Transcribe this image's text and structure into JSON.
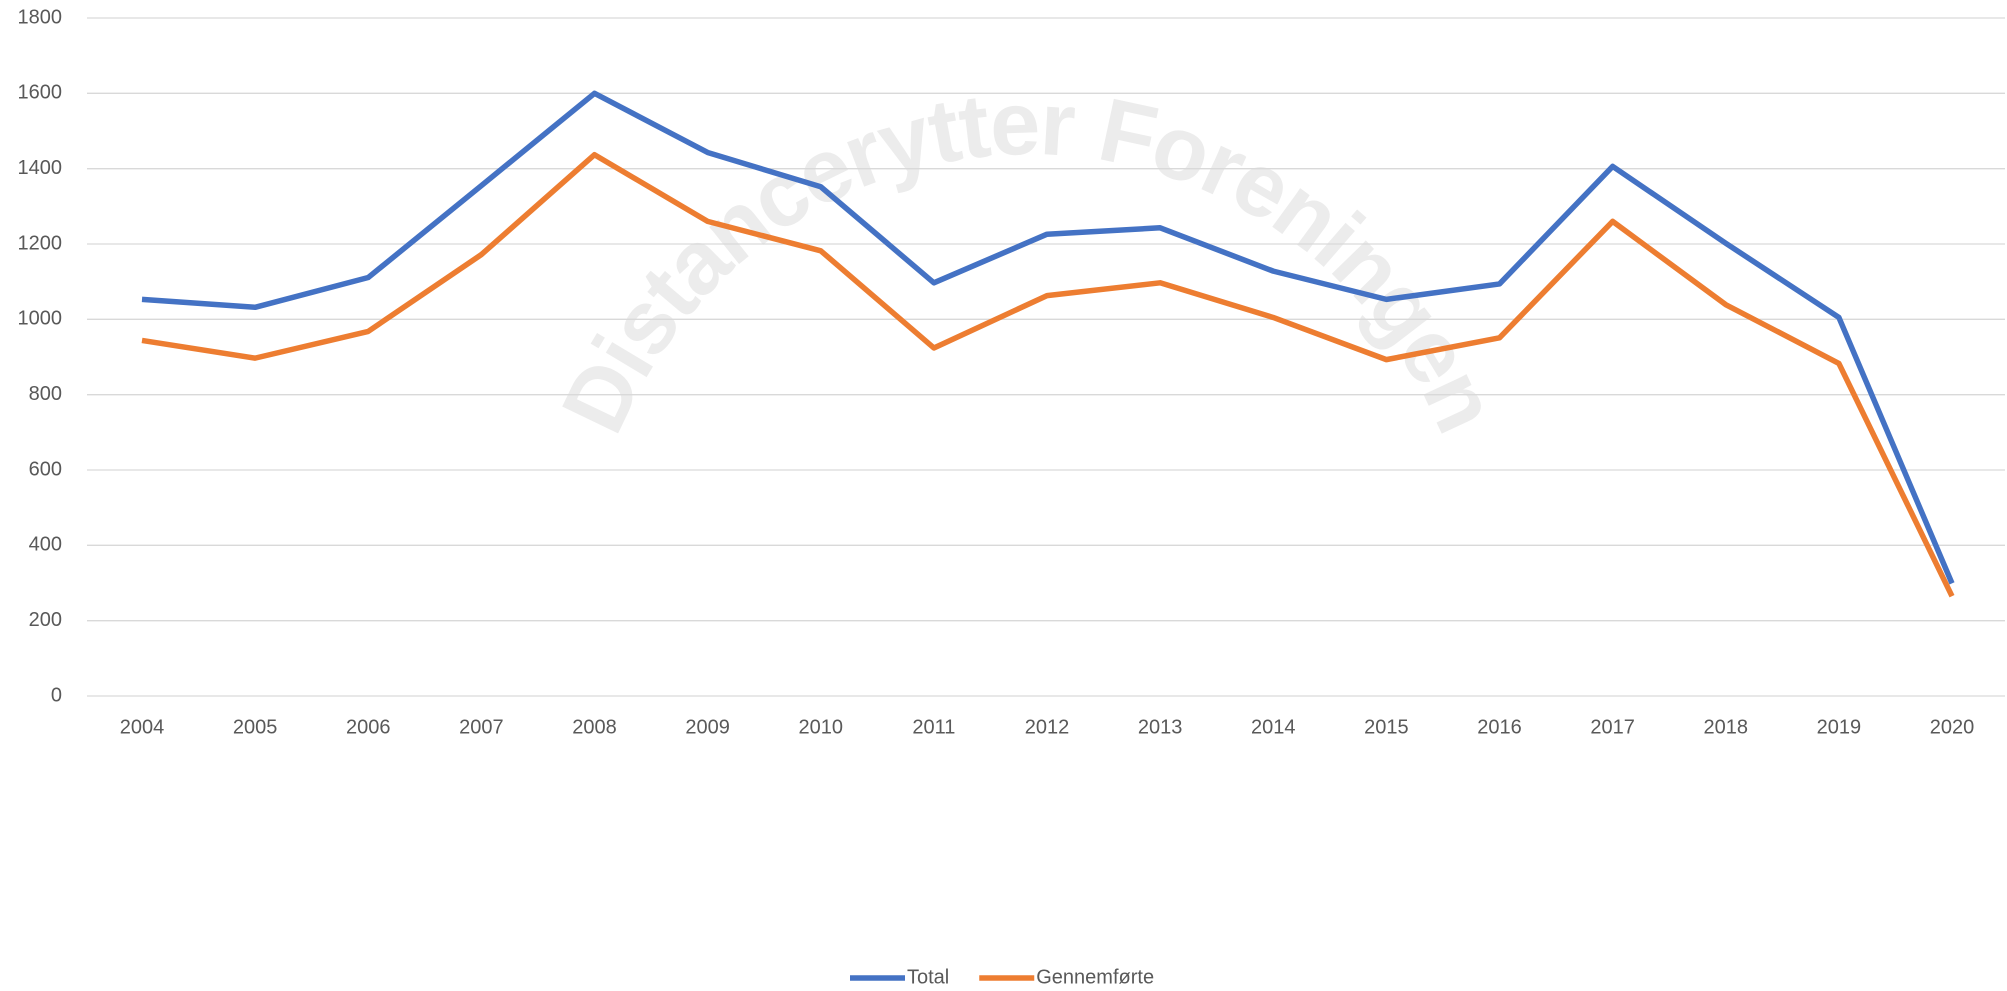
{
  "chart_data": {
    "type": "line",
    "watermark": "Distancerytter Foreningen",
    "categories": [
      "2004",
      "2005",
      "2006",
      "2007",
      "2008",
      "2009",
      "2010",
      "2011",
      "2012",
      "2013",
      "2014",
      "2015",
      "2016",
      "2017",
      "2018",
      "2019",
      "2020"
    ],
    "series": [
      {
        "name": "Total",
        "color": "#4472c4",
        "values": [
          1053,
          1032,
          1111,
          1355,
          1600,
          1443,
          1352,
          1097,
          1226,
          1243,
          1128,
          1053,
          1094,
          1406,
          1202,
          1005,
          299
        ]
      },
      {
        "name": "Gennemførte",
        "color": "#ed7d31",
        "values": [
          944,
          897,
          968,
          1172,
          1437,
          1260,
          1182,
          924,
          1063,
          1097,
          1005,
          893,
          951,
          1260,
          1039,
          883,
          265
        ]
      }
    ],
    "ylim": [
      0,
      1800
    ],
    "yticks": [
      0,
      200,
      400,
      600,
      800,
      1000,
      1200,
      1400,
      1600,
      1800
    ],
    "grid": true,
    "legend": "bottom"
  }
}
